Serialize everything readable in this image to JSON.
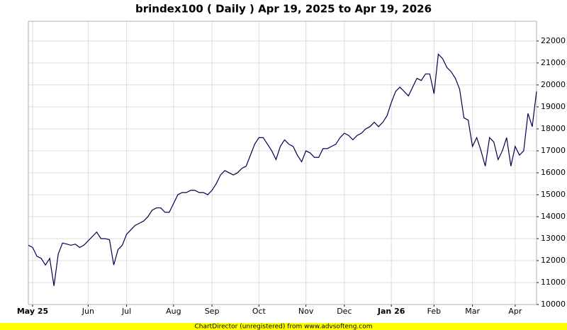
{
  "chart_data": {
    "type": "line",
    "title": "brindex100 ( Daily ) Apr 19, 2025 to Apr 19, 2026",
    "footer": "ChartDirector (unregistered) from www.advsofteng.com",
    "categories": [
      null,
      "May 25",
      null,
      null,
      null,
      null,
      null,
      null,
      null,
      null,
      null,
      null,
      null,
      null,
      "Jun",
      null,
      null,
      null,
      null,
      null,
      null,
      null,
      null,
      "Jul",
      null,
      null,
      null,
      null,
      null,
      null,
      null,
      null,
      null,
      null,
      "Aug",
      null,
      null,
      null,
      null,
      null,
      null,
      null,
      null,
      "Sep",
      null,
      null,
      null,
      null,
      null,
      null,
      null,
      null,
      null,
      null,
      "Oct",
      null,
      null,
      null,
      null,
      null,
      null,
      null,
      null,
      null,
      null,
      "Nov",
      null,
      null,
      null,
      null,
      null,
      null,
      null,
      null,
      "Dec",
      null,
      null,
      null,
      null,
      null,
      null,
      null,
      null,
      null,
      null,
      "Jan 26",
      null,
      null,
      null,
      null,
      null,
      null,
      null,
      null,
      null,
      "Feb",
      null,
      null,
      null,
      null,
      null,
      null,
      null,
      null,
      "Mar",
      null,
      null,
      null,
      null,
      null,
      null,
      null,
      null,
      null,
      "Apr",
      null,
      null,
      null,
      null,
      null
    ],
    "values": [
      12700,
      12600,
      12200,
      12100,
      11800,
      12100,
      10850,
      12300,
      12800,
      12750,
      12700,
      12750,
      12600,
      12700,
      12900,
      13100,
      13300,
      13000,
      13000,
      12950,
      11800,
      12500,
      12700,
      13200,
      13400,
      13600,
      13700,
      13800,
      14000,
      14300,
      14400,
      14400,
      14200,
      14200,
      14600,
      15000,
      15100,
      15100,
      15200,
      15200,
      15100,
      15100,
      15000,
      15200,
      15500,
      15900,
      16100,
      16000,
      15900,
      16000,
      16200,
      16300,
      16800,
      17300,
      17600,
      17600,
      17300,
      17000,
      16600,
      17200,
      17500,
      17300,
      17200,
      16800,
      16500,
      17000,
      16900,
      16700,
      16700,
      17100,
      17100,
      17200,
      17300,
      17600,
      17800,
      17700,
      17500,
      17700,
      17800,
      18000,
      18100,
      18300,
      18100,
      18300,
      18600,
      19200,
      19700,
      19900,
      19700,
      19500,
      19900,
      20300,
      20200,
      20500,
      20500,
      19600,
      21400,
      21200,
      20800,
      20600,
      20300,
      19800,
      18500,
      18400,
      17200,
      17600,
      17000,
      16300,
      17600,
      17400,
      16600,
      17000,
      17600,
      16300,
      17200,
      16800,
      17000,
      18700,
      18100,
      19700
    ],
    "color": "#000050",
    "ylim": [
      10000,
      22900
    ],
    "yticks": [
      10000,
      11000,
      12000,
      13000,
      14000,
      15000,
      16000,
      17000,
      18000,
      19000,
      20000,
      21000,
      22000
    ],
    "grid": true
  }
}
